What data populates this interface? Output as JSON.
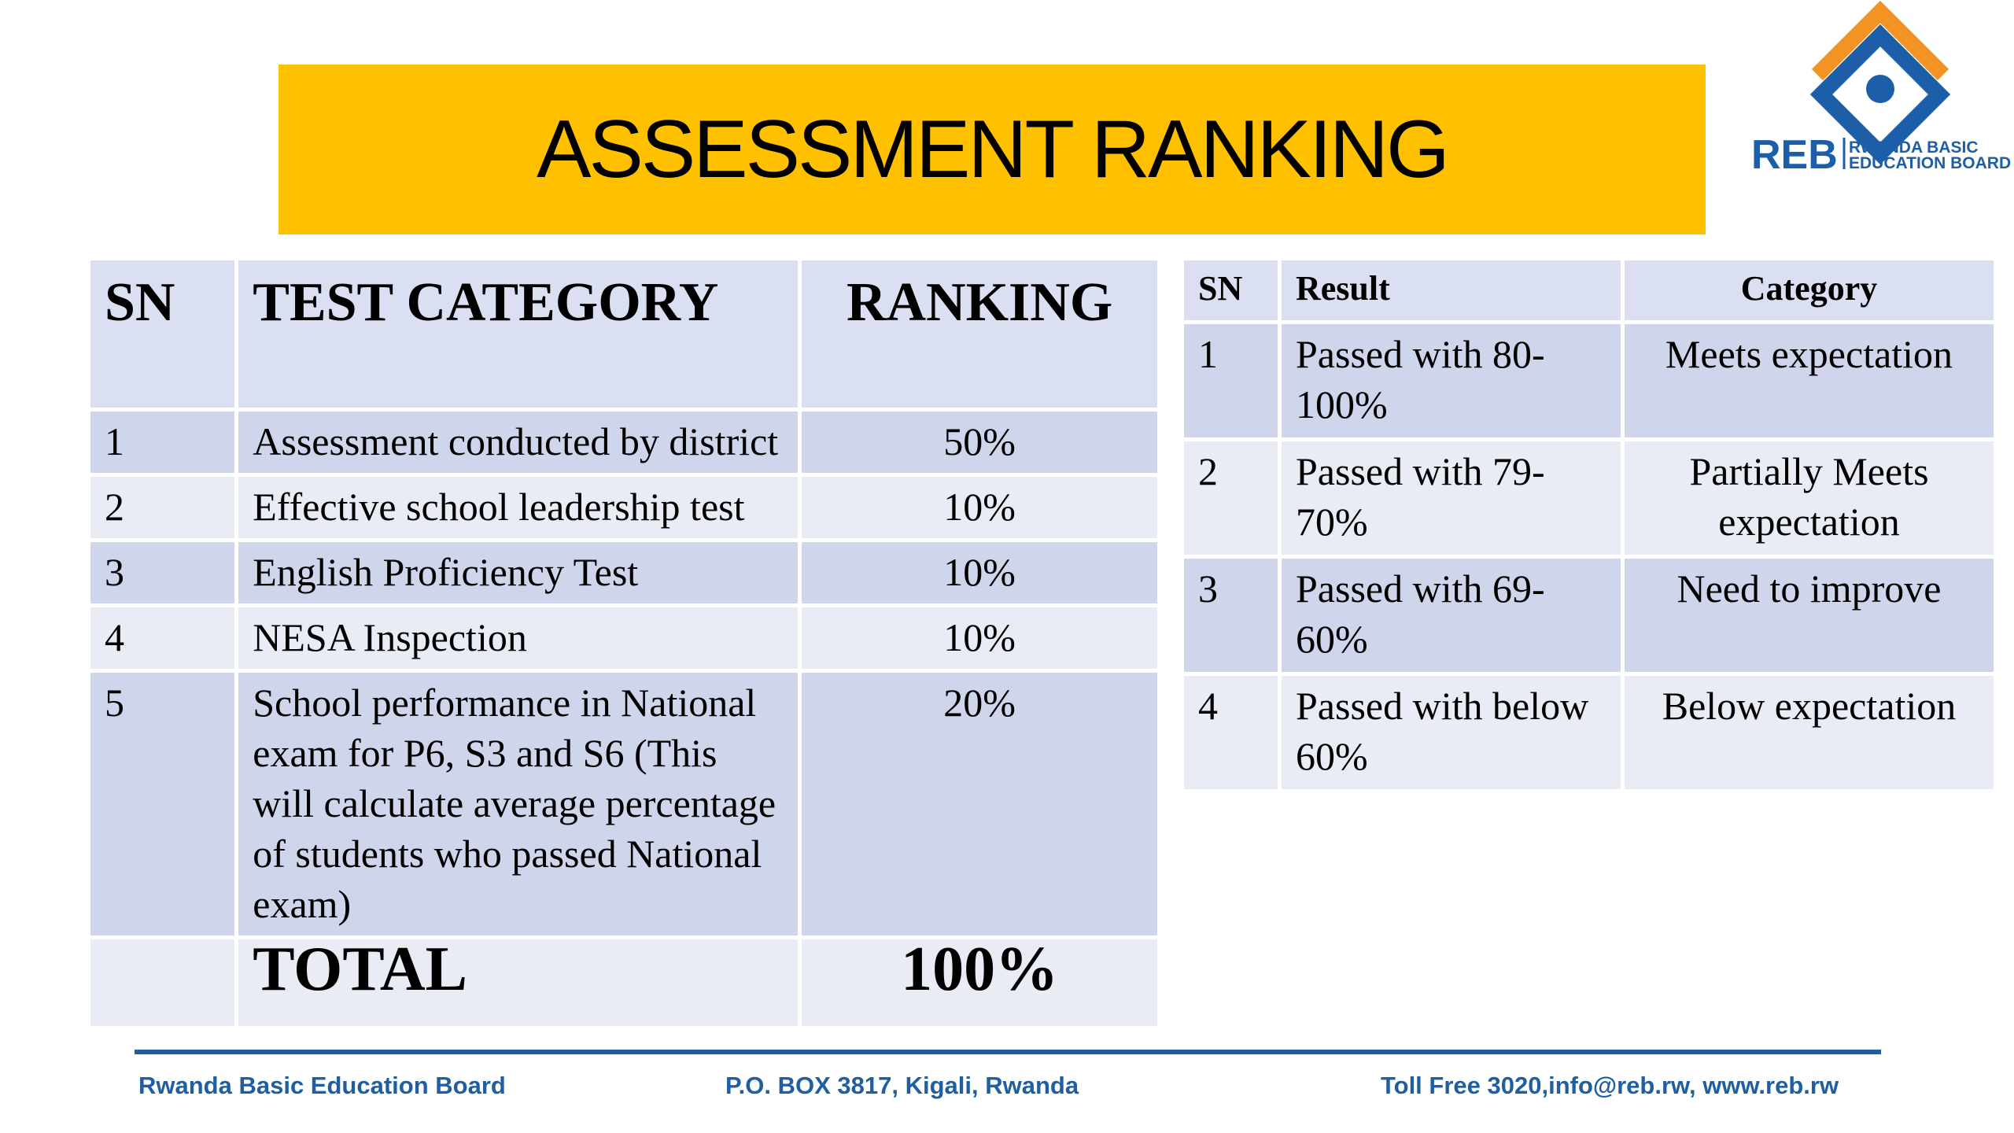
{
  "header": {
    "title": "ASSESSMENT RANKING"
  },
  "logo": {
    "acronym": "REB",
    "line1": "RWANDA BASIC",
    "line2": "EDUCATION BOARD"
  },
  "table1": {
    "headers": [
      "SN",
      "TEST CATEGORY",
      "RANKING"
    ],
    "rows": [
      [
        "1",
        "Assessment conducted by district",
        "50%"
      ],
      [
        "2",
        "Effective school leadership test",
        "10%"
      ],
      [
        "3",
        "English Proficiency Test",
        "10%"
      ],
      [
        "4",
        "NESA Inspection",
        "10%"
      ],
      [
        "5",
        "School performance in National exam for P6, S3 and S6 (This will calculate average percentage of students who passed National exam)",
        "20%"
      ]
    ],
    "total": {
      "label": "TOTAL",
      "value": "100%"
    }
  },
  "table2": {
    "headers": [
      "SN",
      "Result",
      "Category"
    ],
    "rows": [
      [
        "1",
        "Passed with 80-100%",
        "Meets expectation"
      ],
      [
        "2",
        "Passed with 79-70%",
        "Partially Meets expectation"
      ],
      [
        "3",
        "Passed with 69-60%",
        "Need to improve"
      ],
      [
        "4",
        "Passed with below 60%",
        "Below expectation"
      ]
    ]
  },
  "footer": {
    "org": "Rwanda Basic Education Board",
    "address": "P.O. BOX 3817, Kigali, Rwanda",
    "contact": "Toll Free 3020,info@reb.rw,  www.reb.rw"
  }
}
